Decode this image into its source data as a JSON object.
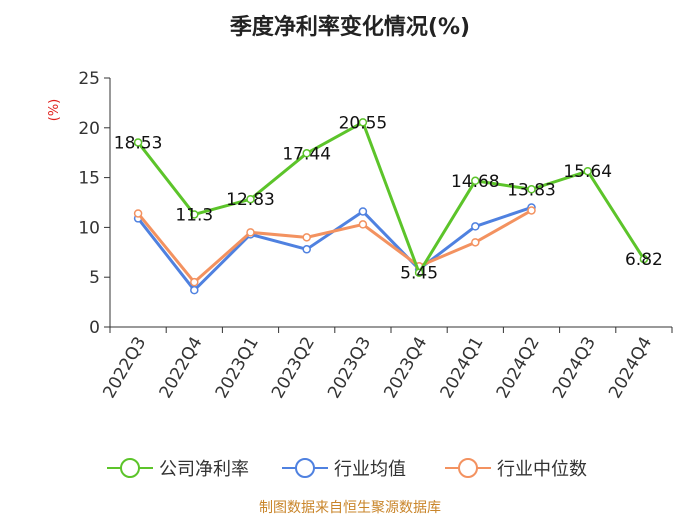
{
  "chart_data": {
    "type": "line",
    "title": "季度净利率变化情况(%)",
    "ylabel": "(%)",
    "xlabel": "",
    "ylim": [
      0,
      25
    ],
    "yticks": [
      0,
      5,
      10,
      15,
      20,
      25
    ],
    "categories": [
      "2022Q3",
      "2022Q4",
      "2023Q1",
      "2023Q2",
      "2023Q3",
      "2023Q4",
      "2024Q1",
      "2024Q2",
      "2024Q3",
      "2024Q4"
    ],
    "series": [
      {
        "name": "公司净利率",
        "color": "#5cc42a",
        "values": [
          18.53,
          11.3,
          12.83,
          17.44,
          20.55,
          5.45,
          14.68,
          13.83,
          15.64,
          6.82
        ],
        "labels": [
          "18.53",
          "11.3",
          "12.83",
          "17.44",
          "20.55",
          "5.45",
          "14.68",
          "13.83",
          "15.64",
          "6.82"
        ]
      },
      {
        "name": "行业均值",
        "color": "#4f81e0",
        "values": [
          10.9,
          3.7,
          9.3,
          7.8,
          11.6,
          5.8,
          10.1,
          12.0,
          null,
          null
        ]
      },
      {
        "name": "行业中位数",
        "color": "#f39260",
        "values": [
          11.4,
          4.5,
          9.5,
          9.0,
          10.3,
          6.1,
          8.5,
          11.7,
          null,
          null
        ]
      }
    ],
    "grid": false,
    "legend_position": "bottom"
  },
  "source": "制图数据来自恒生聚源数据库"
}
